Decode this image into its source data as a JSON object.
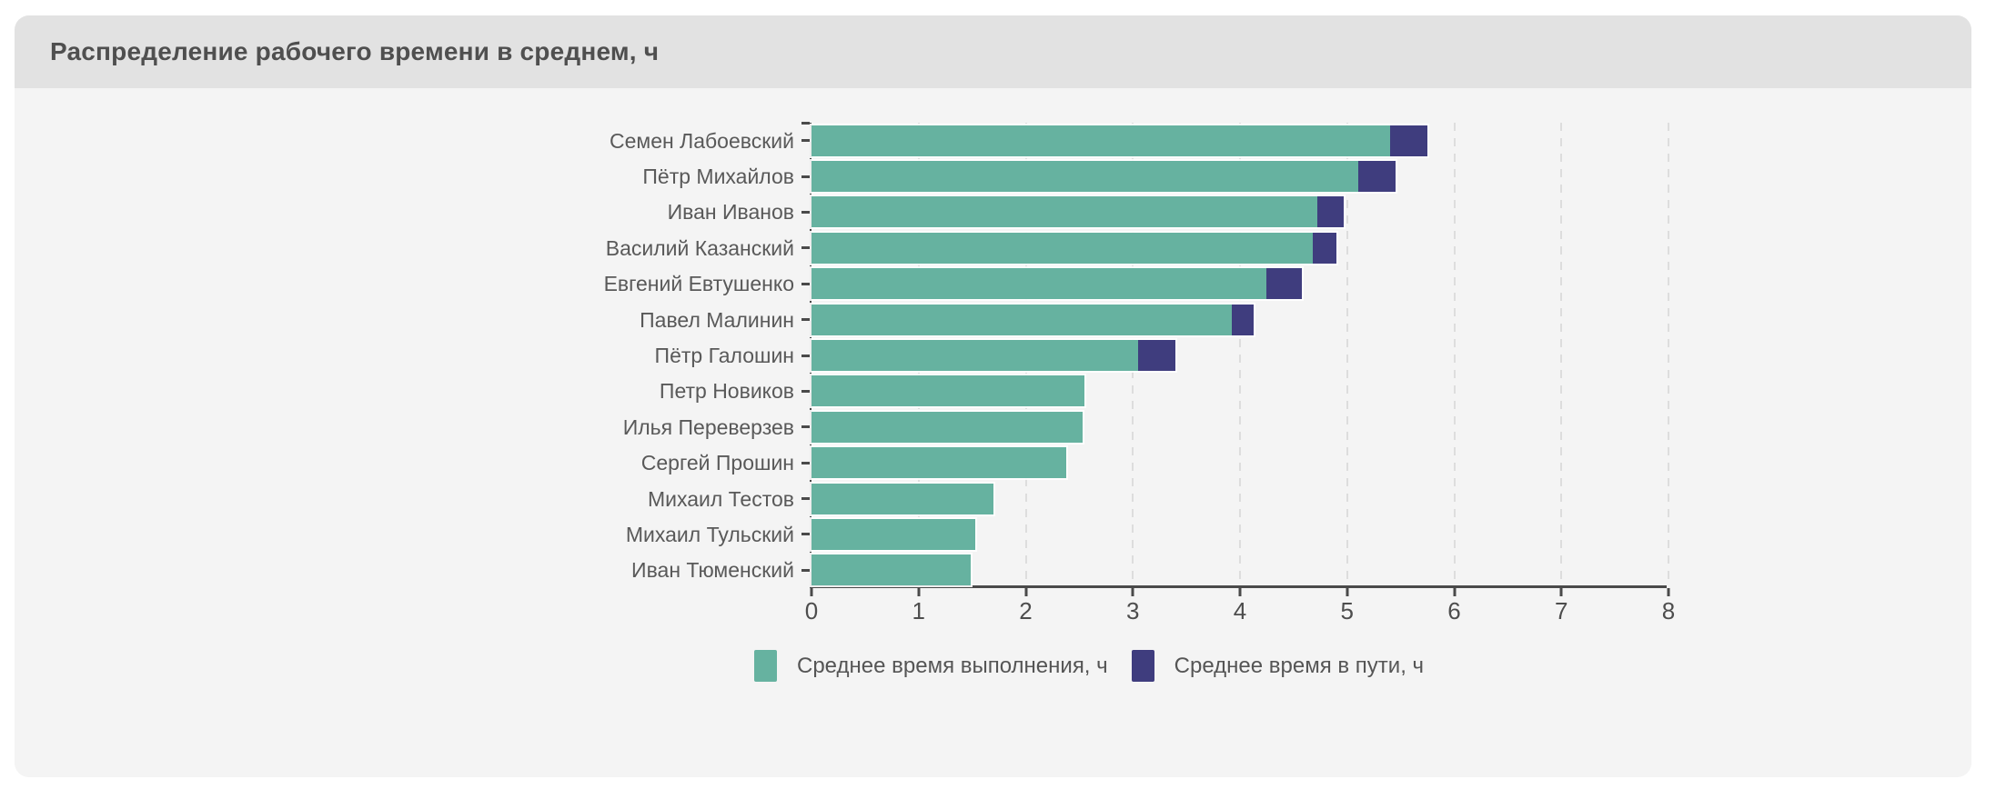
{
  "card": {
    "title": "Распределение рабочего времени в среднем, ч"
  },
  "colors": {
    "page_bg": "#ffffff",
    "header_bg": "#e2e2e2",
    "body_bg": "#f4f4f4",
    "title_text": "#4f4f4f",
    "axis": "#4a4a4a",
    "labels": "#595959",
    "gridline": "#dddddd",
    "series_execution": "#66b2a0",
    "series_travel": "#3f3d7e"
  },
  "chart_data": {
    "type": "bar",
    "orientation": "horizontal",
    "stacked": true,
    "title": "Распределение рабочего времени в среднем, ч",
    "categories": [
      "Семен Лабоевский",
      "Пётр Михайлов",
      "Иван Иванов",
      "Василий Казанский",
      "Евгений Евтушенко",
      "Павел Малинин",
      "Пётр Галошин",
      "Петр Новиков",
      "Илья Переверзев",
      "Сергей Прошин",
      "Михаил Тестов",
      "Михаил Тульский",
      "Иван Тюменский"
    ],
    "series": [
      {
        "name": "Среднее время выполнения, ч",
        "color": "#66b2a0",
        "values": [
          5.4,
          5.1,
          4.72,
          4.68,
          4.25,
          3.92,
          3.05,
          2.55,
          2.53,
          2.38,
          1.7,
          1.53,
          1.49
        ]
      },
      {
        "name": "Среднее время в пути, ч",
        "color": "#3f3d7e",
        "values": [
          0.35,
          0.35,
          0.25,
          0.22,
          0.33,
          0.21,
          0.35,
          0,
          0,
          0,
          0,
          0,
          0
        ]
      }
    ],
    "xlabel": "",
    "ylabel": "",
    "xlim": [
      0,
      8
    ],
    "x_ticks": [
      0,
      1,
      2,
      3,
      4,
      5,
      6,
      7,
      8
    ],
    "grid": "vertical-dashed",
    "legend_position": "bottom"
  }
}
